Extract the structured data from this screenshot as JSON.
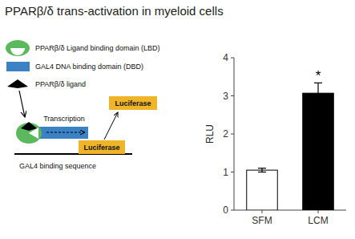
{
  "chart_data": {
    "type": "bar",
    "title": "PPARβ/δ trans-activation in myeloid cells",
    "categories": [
      "SFM",
      "LCM"
    ],
    "values": [
      1.05,
      3.07
    ],
    "errors": [
      0.05,
      0.27
    ],
    "colors": [
      "white",
      "black"
    ],
    "ylabel": "RLU",
    "ylim": [
      0,
      4
    ],
    "yticks": [
      0,
      1,
      2,
      3,
      4
    ],
    "grid": false,
    "annotations": [
      "*",
      "PPARβ/δ Ligand binding domain (LBD)",
      "GAL4 DNA binding domain (DBD)",
      "PPARβ/δ ligand",
      "Luciferase",
      "Transcription",
      "Luciferase",
      "GAL4 binding sequence"
    ]
  }
}
